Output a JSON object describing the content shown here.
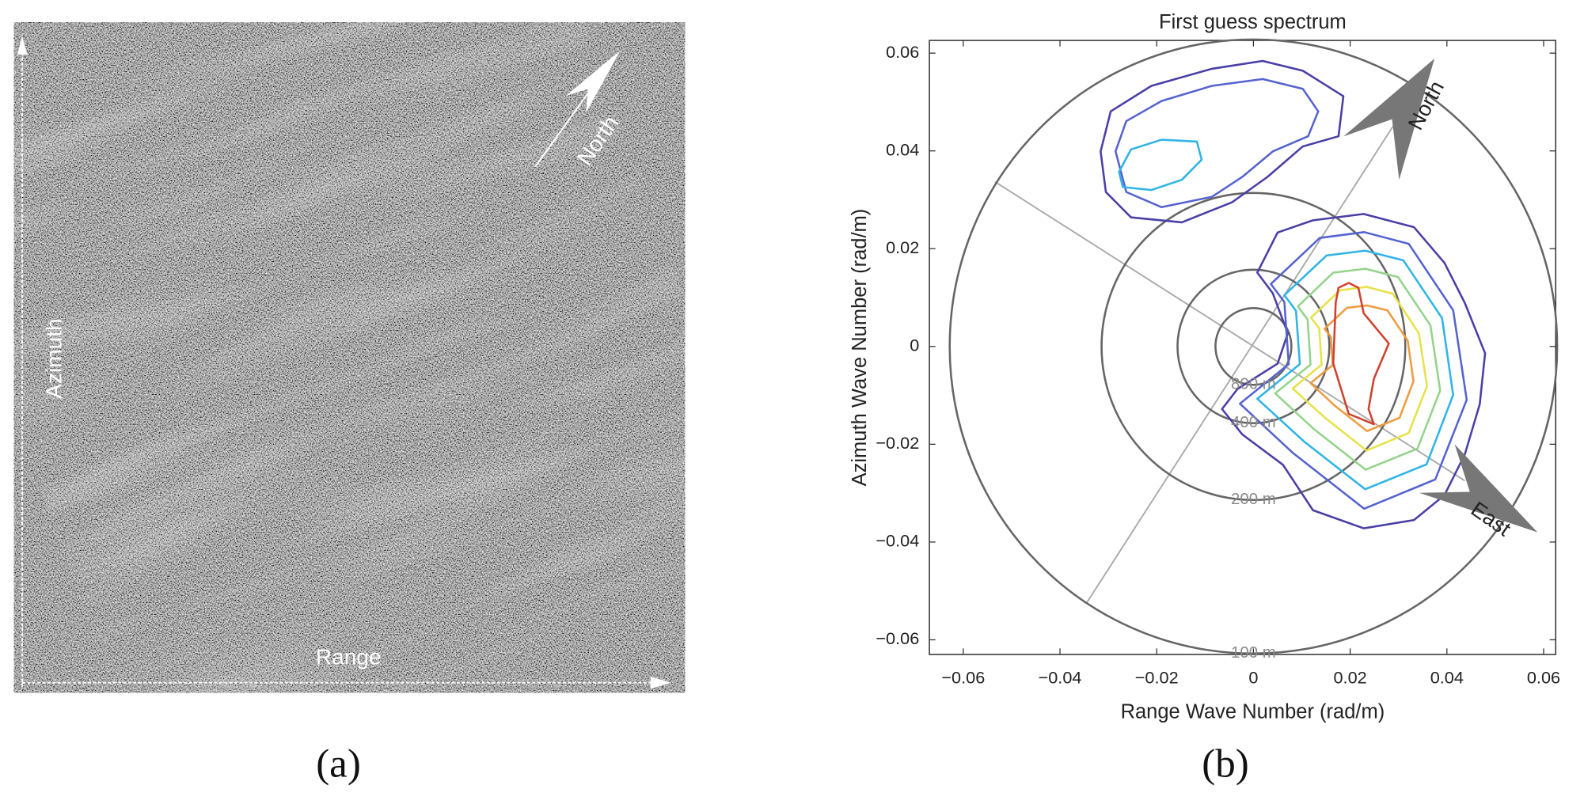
{
  "image_panel": {
    "azimuth": "Azimuth",
    "range": "Range",
    "north": "North"
  },
  "captions": [
    "(a)",
    "(b)"
  ],
  "chart_data": {
    "type": "contour",
    "title": "First guess spectrum",
    "x_label": "Range Wave Number (rad/m)",
    "y_label": "Azimuth Wave Number (rad/m)",
    "xlim": [
      -0.067,
      0.0625
    ],
    "ylim": [
      -0.063,
      0.0626
    ],
    "xticks": [
      {
        "value": -0.06,
        "label": "−0.06"
      },
      {
        "value": -0.04,
        "label": "−0.04"
      },
      {
        "value": -0.02,
        "label": "−0.02"
      },
      0,
      0.02,
      0.04,
      0.06
    ],
    "yticks": [
      {
        "value": -0.06,
        "label": "−0.06"
      },
      {
        "value": -0.04,
        "label": "−0.04"
      },
      {
        "value": -0.02,
        "label": "−0.02"
      },
      0,
      0.02,
      0.04,
      0.06
    ],
    "grid": false,
    "rings": [
      {
        "radius": 0.00785,
        "label": "800 m"
      },
      {
        "radius": 0.0157,
        "label": "400 m"
      },
      {
        "radius": 0.0314,
        "label": "200 m"
      },
      {
        "radius": 0.0628,
        "label": "100 m"
      }
    ],
    "compass": {
      "north": "North",
      "east": "East"
    },
    "contours": [
      {
        "color": "#4a3fa6",
        "x": [
          -0.0316,
          -0.0295,
          -0.0211,
          -0.0086,
          0.0019,
          0.0102,
          0.0186,
          0.0176,
          0.0102,
          0.0029,
          -0.0044,
          -0.0148,
          -0.0253,
          -0.0305
        ],
        "y": [
          0.0399,
          0.0481,
          0.0533,
          0.0568,
          0.0584,
          0.0564,
          0.0512,
          0.043,
          0.0409,
          0.0347,
          0.0295,
          0.0254,
          0.0264,
          0.0316
        ]
      },
      {
        "color": "#5563cf",
        "x": [
          -0.0285,
          -0.0263,
          -0.019,
          -0.0086,
          0.0019,
          0.0102,
          0.0134,
          0.0113,
          0.004,
          -0.0023,
          -0.0086,
          -0.019,
          -0.0263
        ],
        "y": [
          0.0399,
          0.0461,
          0.0502,
          0.0533,
          0.0547,
          0.0527,
          0.0481,
          0.043,
          0.0399,
          0.0347,
          0.0306,
          0.0285,
          0.0316
        ]
      },
      {
        "color": "#2fb4e6",
        "x": [
          -0.0278,
          -0.0253,
          -0.019,
          -0.0117,
          -0.0107,
          -0.0148,
          -0.0211,
          -0.027
        ],
        "y": [
          0.0357,
          0.0403,
          0.0423,
          0.0419,
          0.0382,
          0.0341,
          0.032,
          0.0326
        ]
      },
      {
        "color": "#4a3fa6",
        "x": [
          0.0008,
          0.005,
          0.0123,
          0.0228,
          0.0332,
          0.0395,
          0.0437,
          0.0479,
          0.0468,
          0.0437,
          0.0395,
          0.0332,
          0.0228,
          0.0123,
          0.0061,
          -0.0023,
          -0.0065,
          -0.0033,
          0.005,
          0.0071,
          0.004
        ],
        "y": [
          0.0151,
          0.0233,
          0.0258,
          0.0271,
          0.0244,
          0.0171,
          0.0089,
          -0.0014,
          -0.0118,
          -0.0221,
          -0.0304,
          -0.0355,
          -0.0372,
          -0.0335,
          -0.0242,
          -0.018,
          -0.0128,
          -0.0087,
          -0.0035,
          0.0027,
          0.0109
        ]
      },
      {
        "color": "#5563cf",
        "x": [
          0.0036,
          0.0137,
          0.0229,
          0.0321,
          0.0413,
          0.0441,
          0.0376,
          0.0229,
          0.0082,
          -0.0028,
          0.0073,
          0.0064
        ],
        "y": [
          0.0128,
          0.0222,
          0.0234,
          0.021,
          0.0074,
          -0.0109,
          -0.0272,
          -0.0332,
          -0.0218,
          -0.0117,
          -0.0036,
          0.0091
        ]
      },
      {
        "color": "#2fb4e6",
        "x": [
          0.0064,
          0.0151,
          0.0231,
          0.031,
          0.039,
          0.0413,
          0.0358,
          0.0231,
          0.0104,
          0.0008,
          0.0096,
          0.0088
        ],
        "y": [
          0.0105,
          0.0186,
          0.0196,
          0.0176,
          0.0058,
          -0.0099,
          -0.0241,
          -0.0292,
          -0.0194,
          -0.0107,
          -0.0036,
          0.0073
        ]
      },
      {
        "color": "#93d48a",
        "x": [
          0.0092,
          0.0165,
          0.0232,
          0.0299,
          0.0366,
          0.0386,
          0.0339,
          0.0232,
          0.0125,
          0.0045,
          0.0118,
          0.0112
        ],
        "y": [
          0.0082,
          0.0151,
          0.0159,
          0.0142,
          0.0043,
          -0.009,
          -0.0209,
          -0.0252,
          -0.0169,
          -0.0096,
          -0.0037,
          0.0055
        ]
      },
      {
        "color": "#e6e24a",
        "x": [
          0.0119,
          0.0179,
          0.0234,
          0.0288,
          0.0342,
          0.0359,
          0.0321,
          0.0234,
          0.0147,
          0.0081,
          0.0141,
          0.0136
        ],
        "y": [
          0.0059,
          0.0115,
          0.0122,
          0.0108,
          0.0027,
          -0.0081,
          -0.0177,
          -0.0213,
          -0.0145,
          -0.0086,
          -0.0037,
          0.0037
        ]
      },
      {
        "color": "#ee9c40",
        "x": [
          0.0147,
          0.0193,
          0.0235,
          0.0277,
          0.0319,
          0.0331,
          0.0302,
          0.0235,
          0.0168,
          0.0118,
          0.0164,
          0.016
        ],
        "y": [
          0.0036,
          0.0079,
          0.0084,
          0.0074,
          0.0012,
          -0.0071,
          -0.0146,
          -0.0173,
          -0.0121,
          -0.0075,
          -0.0038,
          0.002
        ]
      },
      {
        "color": "#d0412f",
        "x": [
          0.0176,
          0.0197,
          0.0217,
          0.0228,
          0.028,
          0.0249,
          0.0238,
          0.0249,
          0.0197,
          0.0165,
          0.017
        ],
        "y": [
          0.012,
          0.013,
          0.012,
          0.0068,
          0.0006,
          -0.0066,
          -0.0128,
          -0.0159,
          -0.0138,
          -0.0035,
          0.0089
        ]
      }
    ]
  }
}
